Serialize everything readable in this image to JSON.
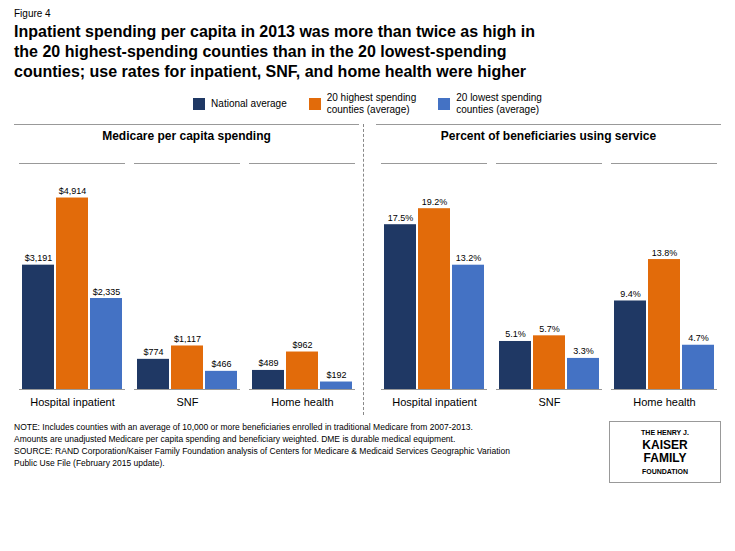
{
  "title": "Inpatient spending per capita in 2013 was more than twice as high in\nthe 20 highest-spending counties than in the 20 lowest-spending\ncounties; use rates for inpatient, SNF, and home health were higher",
  "annotations": [
    "Figure 4",
    "NOTE: Includes counties with an average of 10,000 or more beneficiaries enrolled in traditional Medicare from 2007-2013.\nAmounts are unadjusted Medicare per capita spending and beneficiary weighted. DME is durable medical equipment.\nSOURCE: RAND Corporation/Kaiser Family Foundation analysis of Centers for Medicare & Medicaid Services Geographic Variation\nPublic Use File (February 2015 update).",
    "THE HENRY J.",
    "KAISER",
    "FAMILY",
    "FOUNDATION"
  ],
  "legend": "top",
  "chart_data": [
    {
      "type": "bar",
      "title": "Medicare per capita spending",
      "categories": [
        "Hospital inpatient",
        "SNF",
        "Home health"
      ],
      "series": [
        {
          "name": "National average",
          "color": "#1f3864",
          "values": [
            3191,
            774,
            489
          ],
          "value_labels": [
            "$3,191",
            "$774",
            "$489"
          ]
        },
        {
          "name": "20 highest spending\ncounties (average)",
          "color": "#e26b0a",
          "values": [
            4914,
            1117,
            962
          ],
          "value_labels": [
            "$4,914",
            "$1,117",
            "$962"
          ]
        },
        {
          "name": "20 lowest spending\ncounties (average)",
          "color": "#4472c4",
          "values": [
            2335,
            466,
            192
          ],
          "value_labels": [
            "$2,335",
            "$466",
            "$192"
          ]
        }
      ],
      "ylim": [
        0,
        5800
      ],
      "tick_labels": "x",
      "data_labels": true,
      "grid": false
    },
    {
      "type": "bar",
      "title": "Percent of beneficiaries using service",
      "categories": [
        "Hospital inpatient",
        "SNF",
        "Home health"
      ],
      "series": [
        {
          "name": "National average",
          "color": "#1f3864",
          "values": [
            17.5,
            5.1,
            9.4
          ],
          "value_labels": [
            "17.5%",
            "5.1%",
            "9.4%"
          ]
        },
        {
          "name": "20 highest spending\ncounties (average)",
          "color": "#e26b0a",
          "values": [
            19.2,
            5.7,
            13.8
          ],
          "value_labels": [
            "19.2%",
            "5.7%",
            "13.8%"
          ]
        },
        {
          "name": "20 lowest spending\ncounties (average)",
          "color": "#4472c4",
          "values": [
            13.2,
            3.3,
            4.7
          ],
          "value_labels": [
            "13.2%",
            "3.3%",
            "4.7%"
          ]
        }
      ],
      "ylim": [
        0,
        24
      ],
      "tick_labels": "x",
      "data_labels": true,
      "grid": false
    }
  ]
}
